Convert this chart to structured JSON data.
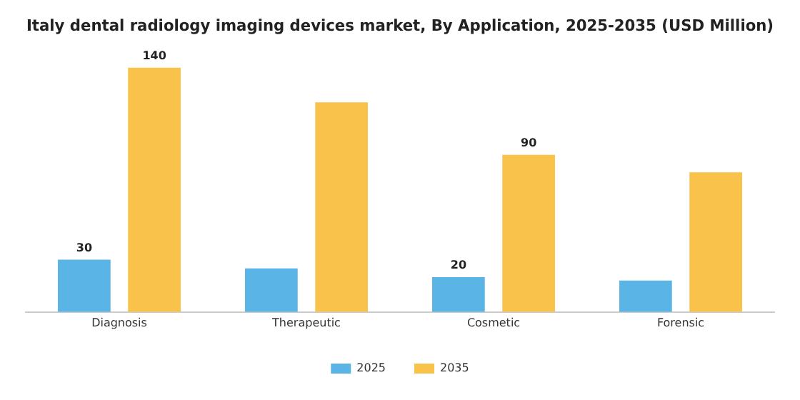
{
  "chart_data": {
    "type": "bar",
    "title": "Italy dental radiology imaging devices market, By Application, 2025-2035 (USD Million)",
    "categories": [
      "Diagnosis",
      "Therapeutic",
      "Cosmetic",
      "Forensic"
    ],
    "series": [
      {
        "name": "2025",
        "color": "#5ab4e5",
        "values": [
          30,
          25,
          20,
          18
        ],
        "value_labels": [
          "30",
          null,
          "20",
          null
        ]
      },
      {
        "name": "2035",
        "color": "#f9c24a",
        "values": [
          140,
          120,
          90,
          80
        ],
        "value_labels": [
          "140",
          null,
          "90",
          null
        ]
      }
    ],
    "legend": "bottom",
    "grid": false,
    "tick_labels": "x"
  }
}
